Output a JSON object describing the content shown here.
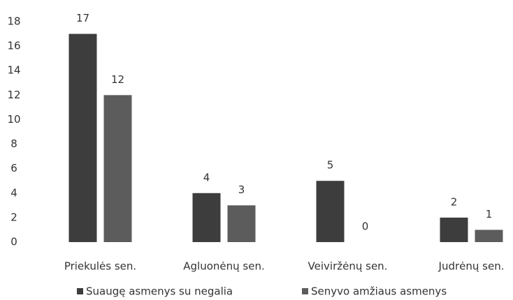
{
  "chart_data": {
    "type": "bar",
    "categories": [
      "Priekulės sen.",
      "Agluonėnų sen.",
      "Veiviržėnų sen.",
      "Judrėnų sen."
    ],
    "series": [
      {
        "name": "Suaugę asmenys su negalia",
        "color": "#3d3d3d",
        "values": [
          17,
          4,
          5,
          2
        ]
      },
      {
        "name": "Senyvo amžiaus asmenys",
        "color": "#5c5c5c",
        "values": [
          12,
          3,
          0,
          1
        ]
      }
    ],
    "ylim": [
      0,
      18
    ],
    "yticks": [
      0,
      2,
      4,
      6,
      8,
      10,
      12,
      14,
      16,
      18
    ],
    "grid": false,
    "legend": "bottom"
  }
}
